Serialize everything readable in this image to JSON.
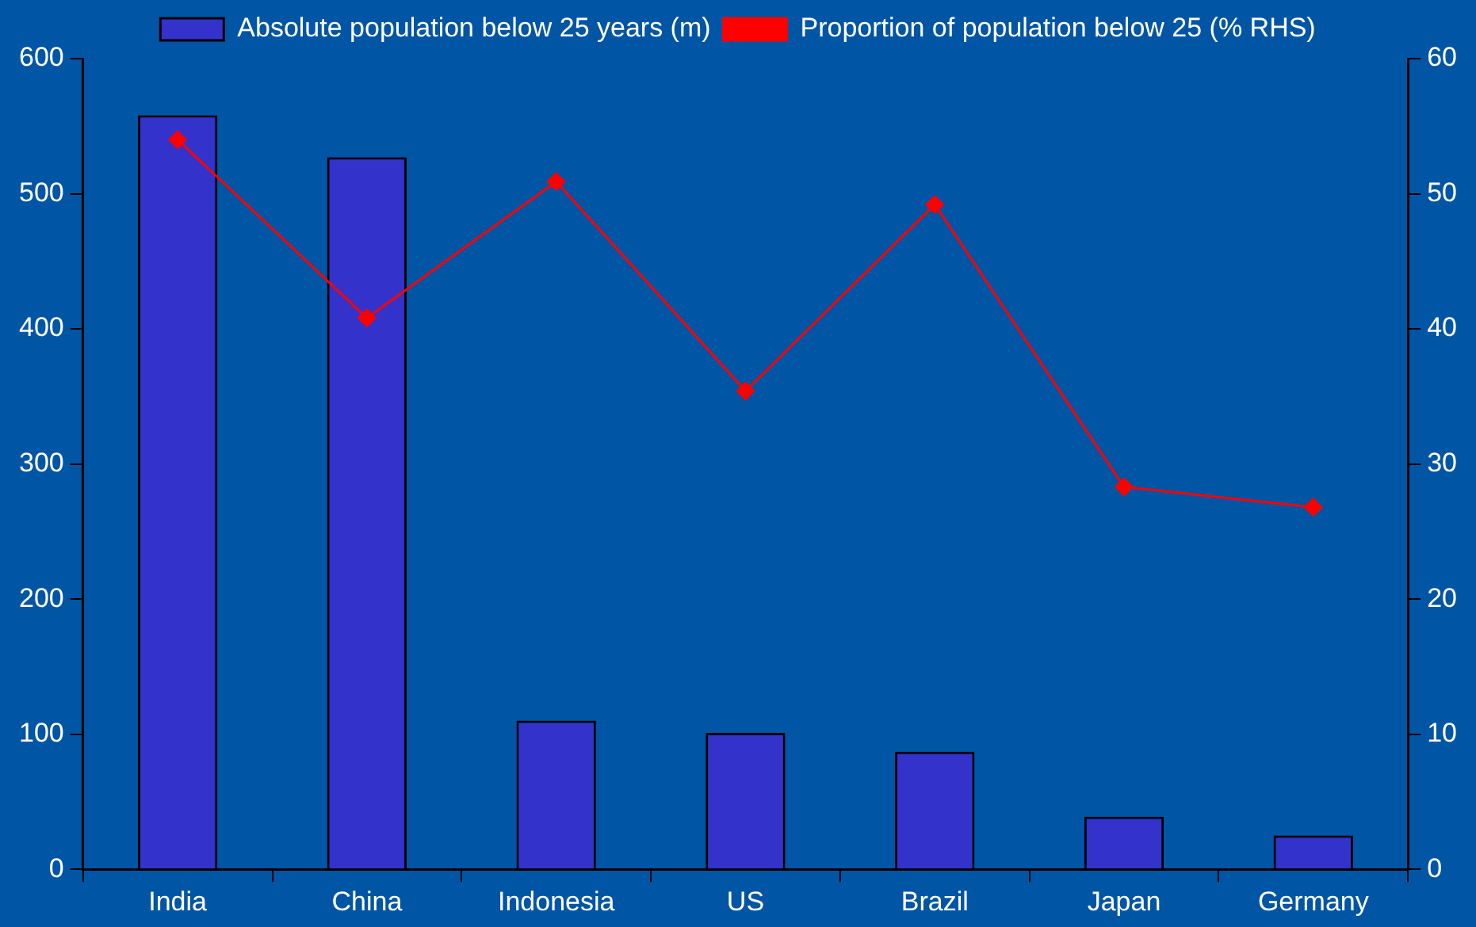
{
  "chart_data": {
    "type": "bar",
    "categories": [
      "India",
      "China",
      "Indonesia",
      "US",
      "Brazil",
      "Japan",
      "Germany"
    ],
    "series": [
      {
        "name": "Absolute population below 25 years (m)",
        "color": "#3333cc",
        "values": [
          558,
          527,
          110,
          101,
          87,
          39,
          25
        ]
      },
      {
        "name": "Proportion of population below 25 (% RHS)",
        "type": "line",
        "axis": "y2",
        "color": "#ff0000",
        "values": [
          54.0,
          40.8,
          50.9,
          35.4,
          49.2,
          28.3,
          26.8
        ]
      }
    ],
    "ylim": [
      0,
      600
    ],
    "yticks": [
      0,
      100,
      200,
      300,
      400,
      500,
      600
    ],
    "y2lim": [
      0,
      60
    ],
    "y2ticks": [
      0,
      10,
      20,
      30,
      40,
      50,
      60
    ],
    "grid": false,
    "legend": "top",
    "marker": "diamond",
    "line_style": "solid"
  }
}
